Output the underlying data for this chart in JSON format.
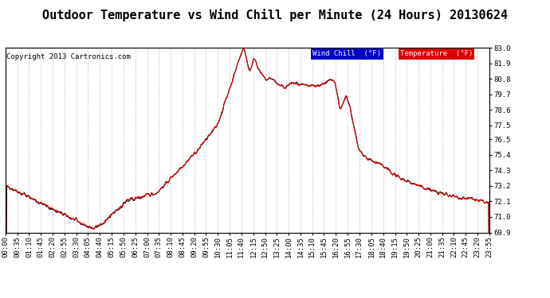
{
  "title": "Outdoor Temperature vs Wind Chill per Minute (24 Hours) 20130624",
  "copyright": "Copyright 2013 Cartronics.com",
  "ylim": [
    69.9,
    83.0
  ],
  "yticks": [
    69.9,
    71.0,
    72.1,
    73.2,
    74.3,
    75.4,
    76.5,
    77.5,
    78.6,
    79.7,
    80.8,
    81.9,
    83.0
  ],
  "bg_color": "#ffffff",
  "plot_bg_color": "#ffffff",
  "grid_color": "#c8c8c8",
  "temp_color": "#dd0000",
  "wind_chill_color": "#000000",
  "legend_wind_bg": "#0000cc",
  "legend_temp_bg": "#dd0000",
  "title_fontsize": 11,
  "tick_fontsize": 6.5,
  "copyright_fontsize": 6.5,
  "xtick_labels": [
    "00:00",
    "00:35",
    "01:10",
    "01:45",
    "02:20",
    "02:55",
    "03:30",
    "04:05",
    "04:40",
    "05:15",
    "05:50",
    "06:25",
    "07:00",
    "07:35",
    "08:10",
    "08:45",
    "09:20",
    "09:55",
    "10:30",
    "11:05",
    "11:40",
    "12:15",
    "12:50",
    "13:25",
    "14:00",
    "14:35",
    "15:10",
    "15:45",
    "16:20",
    "16:55",
    "17:30",
    "18:05",
    "18:40",
    "19:15",
    "19:50",
    "20:25",
    "21:00",
    "21:35",
    "22:10",
    "22:45",
    "23:20",
    "23:55"
  ]
}
